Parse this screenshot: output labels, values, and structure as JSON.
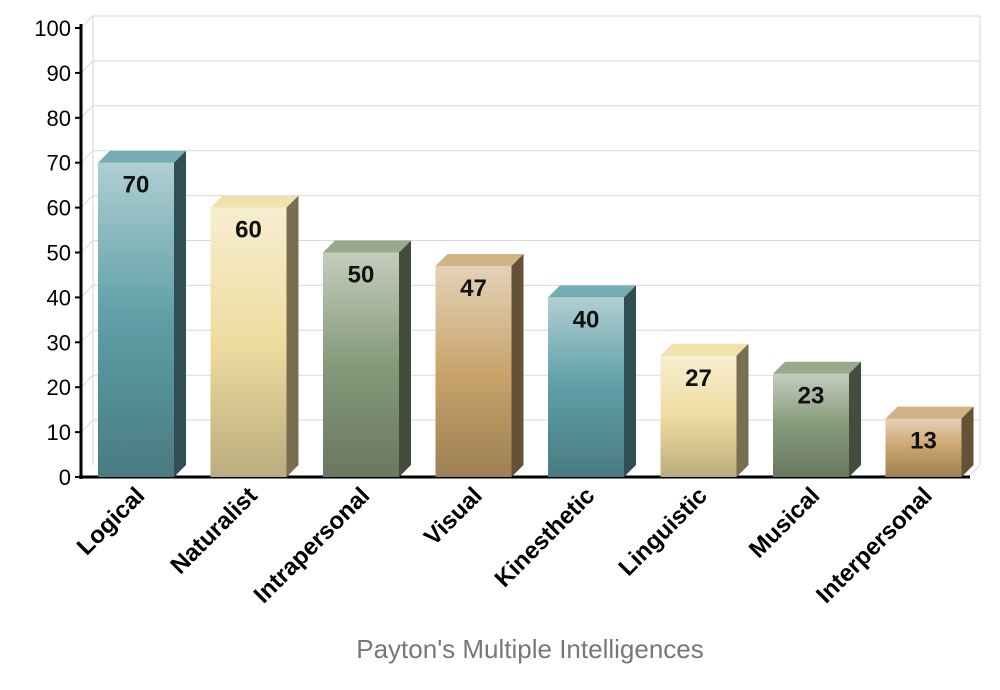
{
  "chart_data": {
    "type": "bar",
    "title": "",
    "xlabel": "Payton's Multiple Intelligences",
    "ylabel": "",
    "ylim": [
      0,
      100
    ],
    "yticks": [
      0,
      10,
      20,
      30,
      40,
      50,
      60,
      70,
      80,
      90,
      100
    ],
    "grid": true,
    "categories": [
      "Logical",
      "Naturalist",
      "Intrapersonal",
      "Visual",
      "Kinesthetic",
      "Linguistic",
      "Musical",
      "Interpersonal"
    ],
    "values": [
      70,
      60,
      50,
      47,
      40,
      27,
      23,
      13
    ],
    "colors": [
      "#5e9ea6",
      "#efdca0",
      "#869a7a",
      "#c9a46c",
      "#5e9ea6",
      "#efdca0",
      "#869a7a",
      "#c9a46c"
    ]
  }
}
